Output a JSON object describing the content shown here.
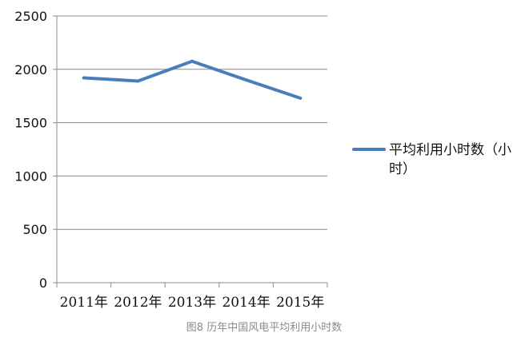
{
  "chart_data": {
    "type": "line",
    "categories": [
      "2011年",
      "2012年",
      "2013年",
      "2014年",
      "2015年"
    ],
    "series": [
      {
        "name": "平均利用小时数（小时）",
        "values": [
          1920,
          1890,
          2075,
          1900,
          1730
        ],
        "color": "#4A7EBB"
      }
    ],
    "ylim": [
      0,
      2500
    ],
    "yticks": [
      0,
      500,
      1000,
      1500,
      2000,
      2500
    ],
    "grid": true,
    "legend": "right",
    "legend_lines": [
      "平均利用小时数（小",
      "时）"
    ],
    "title": "",
    "xlabel": "",
    "ylabel": ""
  },
  "caption": "图8 历年中国风电平均利用小时数"
}
